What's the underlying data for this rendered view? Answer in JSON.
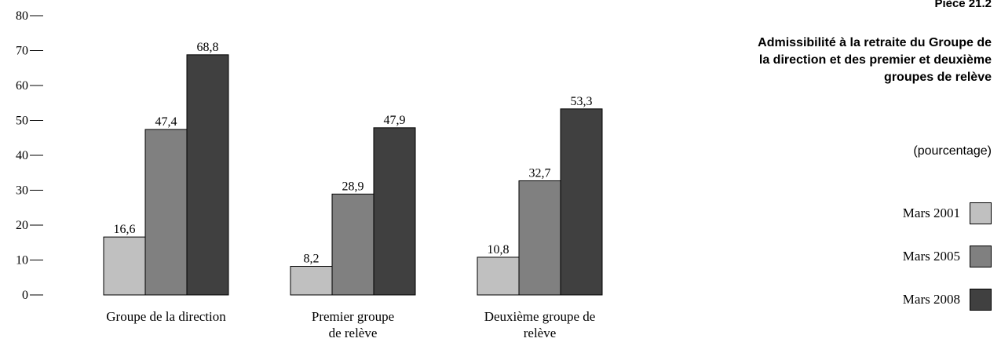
{
  "header": {
    "piece": "Pièce 21.2",
    "title": "Admissibilité à la retraite du Groupe de la direction et des premier et deuxième groupes de relève",
    "subtitle": "(pourcentage)"
  },
  "legend": [
    {
      "label": "Mars 2001",
      "color": "#c0c0c0"
    },
    {
      "label": "Mars 2005",
      "color": "#808080"
    },
    {
      "label": "Mars 2008",
      "color": "#404040"
    }
  ],
  "chart_data": {
    "type": "bar",
    "categories": [
      [
        "Groupe de la direction"
      ],
      [
        "Premier groupe",
        "de relève"
      ],
      [
        "Deuxième groupe de",
        "relève"
      ]
    ],
    "series": [
      {
        "name": "Mars 2001",
        "values": [
          16.6,
          8.2,
          10.8
        ],
        "labels": [
          "16,6",
          "8,2",
          "10,8"
        ],
        "color": "#c0c0c0"
      },
      {
        "name": "Mars 2005",
        "values": [
          47.4,
          28.9,
          32.7
        ],
        "labels": [
          "47,4",
          "28,9",
          "32,7"
        ],
        "color": "#808080"
      },
      {
        "name": "Mars 2008",
        "values": [
          68.8,
          47.9,
          53.3
        ],
        "labels": [
          "68,8",
          "47,9",
          "53,3"
        ],
        "color": "#404040"
      }
    ],
    "yticks": [
      0,
      10,
      20,
      30,
      40,
      50,
      60,
      70,
      80
    ],
    "ylim": [
      0,
      80
    ],
    "grid": false,
    "legend_position": "right"
  }
}
